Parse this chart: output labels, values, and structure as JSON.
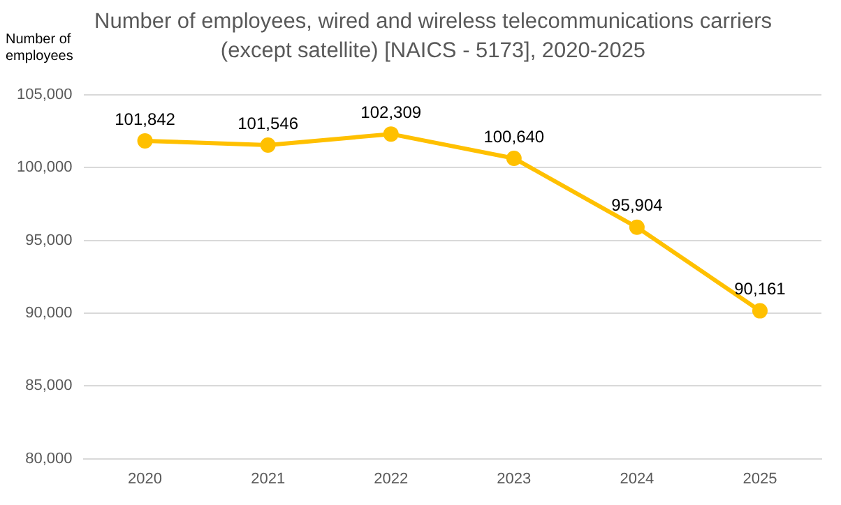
{
  "chart_data": {
    "type": "line",
    "title": "Number of employees, wired and wireless telecommunications carriers (except satellite)  [NAICS - 5173], 2020-2025",
    "ylabel": "Number of employees",
    "categories": [
      "2020",
      "2021",
      "2022",
      "2023",
      "2024",
      "2025"
    ],
    "series": [
      {
        "color": "#ffc000",
        "values": [
          101842,
          101546,
          102309,
          100640,
          95904,
          90161
        ],
        "value_labels": [
          "101,842",
          "101,546",
          "102,309",
          "100,640",
          "95,904",
          "90,161"
        ]
      }
    ],
    "ylim": [
      80000,
      105000
    ],
    "yticks": [
      {
        "value": 80000,
        "label": "80,000"
      },
      {
        "value": 85000,
        "label": "85,000"
      },
      {
        "value": 90000,
        "label": "90,000"
      },
      {
        "value": 95000,
        "label": "95,000"
      },
      {
        "value": 100000,
        "label": "100,000"
      },
      {
        "value": 105000,
        "label": "105,000"
      }
    ],
    "grid": "y",
    "legend": false,
    "marker": "circle",
    "line_style": "solid"
  }
}
